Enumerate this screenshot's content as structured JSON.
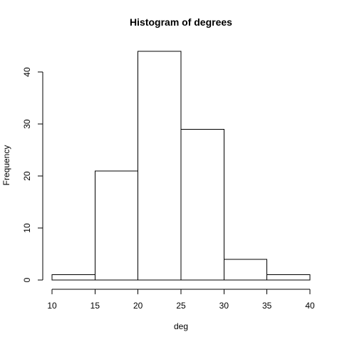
{
  "chart_data": {
    "type": "bar",
    "title": "Histogram of degrees",
    "xlabel": "deg",
    "ylabel": "Frequency",
    "bins": [
      {
        "start": 10,
        "end": 15,
        "count": 1
      },
      {
        "start": 15,
        "end": 20,
        "count": 21
      },
      {
        "start": 20,
        "end": 25,
        "count": 44
      },
      {
        "start": 25,
        "end": 30,
        "count": 29
      },
      {
        "start": 30,
        "end": 35,
        "count": 4
      },
      {
        "start": 35,
        "end": 40,
        "count": 1
      }
    ],
    "xlim": [
      10,
      40
    ],
    "ylim": [
      0,
      44
    ],
    "xticks": [
      10,
      15,
      20,
      25,
      30,
      35,
      40
    ],
    "yticks": [
      0,
      10,
      20,
      30,
      40
    ],
    "grid": false,
    "bar_fill": "#ffffff",
    "line_color": "#000000"
  }
}
